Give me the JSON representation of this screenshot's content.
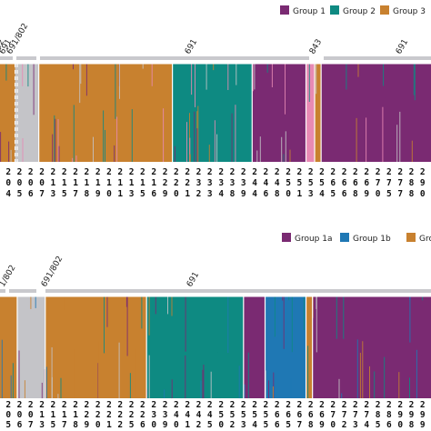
{
  "chart_data": [
    {
      "type": "bar",
      "stacked": true,
      "legend": {
        "placement": "top-right",
        "entries": [
          "Group 1",
          "Group 2",
          "Group 3"
        ]
      },
      "series": [
        {
          "name": "Group 1",
          "color": "#7a2a72"
        },
        {
          "name": "Group 2",
          "color": "#0e8a82"
        },
        {
          "name": "Group 3",
          "color": "#c8812f"
        }
      ],
      "extra_colors": {
        "unassigned": "#c4c4c8",
        "pink": "#e88ab4"
      },
      "clade_labels": [
        "802",
        "691",
        "691/802",
        "691",
        "843",
        "691"
      ],
      "blocks": [
        {
          "from": 0,
          "to": 0.035,
          "color": "#c8812f"
        },
        {
          "from": 0.035,
          "to": 0.04,
          "color": "#c4c4c8"
        },
        {
          "from": 0.04,
          "to": 0.09,
          "color": "#c4c4c8"
        },
        {
          "from": 0.09,
          "to": 0.4,
          "color": "#c8812f"
        },
        {
          "from": 0.4,
          "to": 0.585,
          "color": "#0e8a82"
        },
        {
          "from": 0.585,
          "to": 0.71,
          "color": "#7a2a72"
        },
        {
          "from": 0.71,
          "to": 0.73,
          "color": "#e88ab4"
        },
        {
          "from": 0.73,
          "to": 0.745,
          "color": "#c8812f"
        },
        {
          "from": 0.745,
          "to": 1.0,
          "color": "#7a2a72"
        }
      ],
      "tick_labels_row1": [
        "2",
        "2",
        "2",
        "2",
        "2",
        "2",
        "2",
        "2",
        "2",
        "2",
        "2",
        "2",
        "2",
        "2",
        "2",
        "2",
        "2",
        "2",
        "2",
        "2",
        "2",
        "2",
        "2",
        "2",
        "2",
        "2",
        "2",
        "2",
        "2",
        "2",
        "2",
        "2",
        "2",
        "2",
        "2",
        "2",
        "2",
        "2"
      ],
      "tick_labels_row2": [
        "0",
        "0",
        "0",
        "0",
        "1",
        "1",
        "1",
        "1",
        "1",
        "1",
        "1",
        "1",
        "1",
        "1",
        "2",
        "2",
        "2",
        "3",
        "3",
        "3",
        "3",
        "3",
        "4",
        "4",
        "4",
        "5",
        "5",
        "5",
        "5",
        "6",
        "6",
        "6",
        "6",
        "7",
        "7",
        "7",
        "8",
        "9"
      ],
      "tick_labels_row3": [
        "4",
        "5",
        "6",
        "7",
        "3",
        "5",
        "7",
        "8",
        "9",
        "0",
        "1",
        "3",
        "5",
        "6",
        "9",
        "0",
        "1",
        "2",
        "3",
        "4",
        "8",
        "9",
        "4",
        "6",
        "8",
        "0",
        "1",
        "3",
        "4",
        "5",
        "6",
        "8",
        "9",
        "0",
        "5",
        "7",
        "8",
        "0"
      ]
    },
    {
      "type": "bar",
      "stacked": true,
      "legend": {
        "placement": "top-right",
        "entries": [
          "Group 1a",
          "Group 1b",
          "Gro"
        ]
      },
      "series": [
        {
          "name": "Group 1a",
          "color": "#7a2a72"
        },
        {
          "name": "Group 1b",
          "color": "#1f78b4"
        },
        {
          "name": "Gro",
          "color": "#c8812f"
        }
      ],
      "extra_colors": {
        "group2": "#0e8a82",
        "unassigned": "#c4c4c8"
      },
      "clade_labels": [
        "1/802",
        "691/802",
        "691"
      ],
      "blocks": [
        {
          "from": 0,
          "to": 0.04,
          "color": "#c8812f"
        },
        {
          "from": 0.04,
          "to": 0.105,
          "color": "#c4c4c8"
        },
        {
          "from": 0.105,
          "to": 0.34,
          "color": "#c8812f"
        },
        {
          "from": 0.34,
          "to": 0.565,
          "color": "#0e8a82"
        },
        {
          "from": 0.565,
          "to": 0.615,
          "color": "#7a2a72"
        },
        {
          "from": 0.615,
          "to": 0.71,
          "color": "#1f78b4"
        },
        {
          "from": 0.71,
          "to": 0.725,
          "color": "#c8812f"
        },
        {
          "from": 0.725,
          "to": 1.0,
          "color": "#7a2a72"
        }
      ],
      "tick_labels_row1": [
        "2",
        "2",
        "2",
        "2",
        "2",
        "2",
        "2",
        "2",
        "2",
        "2",
        "2",
        "2",
        "2",
        "2",
        "2",
        "2",
        "2",
        "2",
        "2",
        "2",
        "2",
        "2",
        "2",
        "2",
        "2",
        "2",
        "2",
        "2",
        "2",
        "2",
        "2",
        "2",
        "2",
        "2",
        "2",
        "2",
        "2",
        "2"
      ],
      "tick_labels_row2": [
        "0",
        "0",
        "0",
        "1",
        "1",
        "1",
        "1",
        "2",
        "2",
        "2",
        "2",
        "2",
        "2",
        "3",
        "3",
        "4",
        "4",
        "4",
        "4",
        "5",
        "5",
        "5",
        "5",
        "5",
        "6",
        "6",
        "6",
        "6",
        "6",
        "7",
        "7",
        "7",
        "7",
        "8",
        "8",
        "9",
        "9",
        "9"
      ],
      "tick_labels_row3": [
        "5",
        "6",
        "7",
        "3",
        "5",
        "7",
        "8",
        "9",
        "0",
        "1",
        "2",
        "5",
        "6",
        "0",
        "9",
        "0",
        "1",
        "2",
        "5",
        "0",
        "2",
        "3",
        "4",
        "5",
        "6",
        "5",
        "7",
        "8",
        "9",
        "0",
        "2",
        "3",
        "4",
        "5",
        "6",
        "0",
        "8",
        "9"
      ]
    }
  ]
}
